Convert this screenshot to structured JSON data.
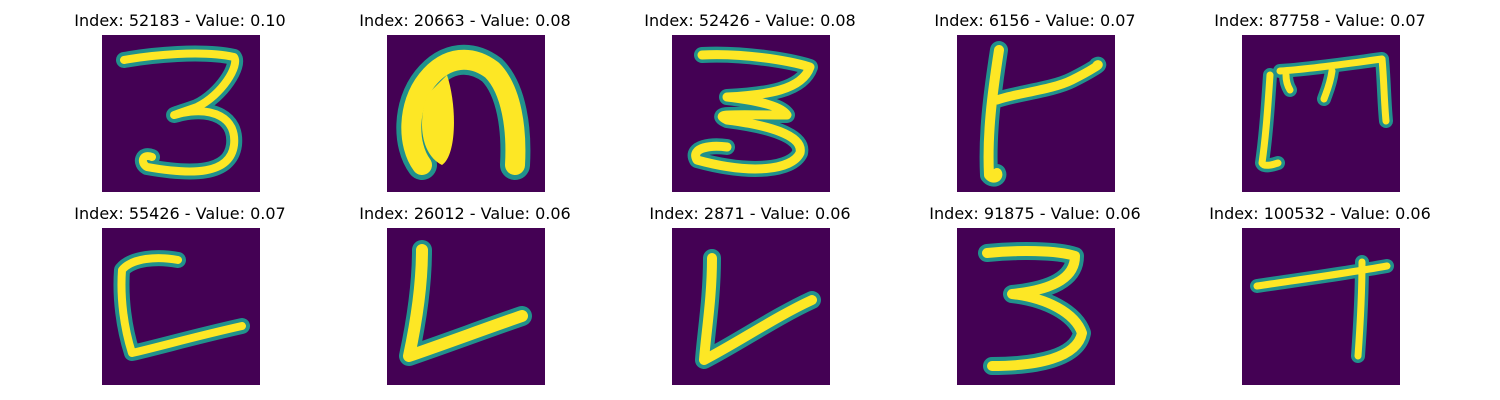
{
  "figure": {
    "panels": [
      {
        "title": "Index: 52183 - Value: 0.10",
        "glyph": "digit-3-narrow"
      },
      {
        "title": "Index: 20663 - Value: 0.08",
        "glyph": "n-shape"
      },
      {
        "title": "Index: 52426 - Value: 0.08",
        "glyph": "digit-3-wide"
      },
      {
        "title": "Index: 6156 - Value: 0.07",
        "glyph": "t-shape-slanted"
      },
      {
        "title": "Index: 87758 - Value: 0.07",
        "glyph": "m-shape-rotated"
      },
      {
        "title": "Index: 55426 - Value: 0.07",
        "glyph": "c-l-shape"
      },
      {
        "title": "Index: 26012 - Value: 0.06",
        "glyph": "l-shape"
      },
      {
        "title": "Index: 2871 - Value: 0.06",
        "glyph": "v-l-shape"
      },
      {
        "title": "Index: 91875 - Value: 0.06",
        "glyph": "digit-3-compact"
      },
      {
        "title": "Index: 100532 - Value: 0.06",
        "glyph": "t-shape"
      }
    ],
    "colors": {
      "background": "#440154",
      "stroke": "#fde725",
      "edge": "#21918c"
    }
  }
}
